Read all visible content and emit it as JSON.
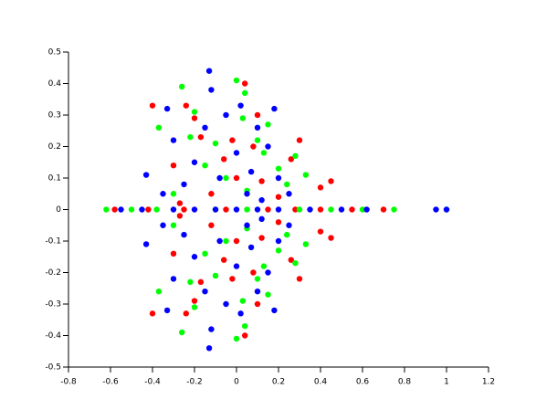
{
  "chart_data": {
    "type": "scatter",
    "xlim": [
      -0.8,
      1.2
    ],
    "ylim": [
      -0.5,
      0.5
    ],
    "xticks": [
      -0.8,
      -0.6,
      -0.4,
      -0.2,
      0,
      0.2,
      0.4,
      0.6,
      0.8,
      1,
      1.2
    ],
    "yticks": [
      -0.5,
      -0.4,
      -0.3,
      -0.2,
      -0.1,
      0,
      0.1,
      0.2,
      0.3,
      0.4,
      0.5
    ],
    "series": [
      {
        "color": "#ff0000",
        "x": [
          -0.58,
          -0.42,
          -0.25,
          -0.05,
          0.15,
          0.28,
          0.4,
          0.55,
          0.7,
          -0.4,
          -0.4,
          0.04,
          0.04,
          -0.24,
          -0.24,
          -0.02,
          -0.02,
          0.1,
          0.1,
          -0.2,
          -0.2,
          0.4,
          0.4,
          0.45,
          0.45,
          0.26,
          0.26,
          -0.17,
          -0.17,
          0,
          0,
          0.12,
          0.12,
          -0.3,
          -0.3,
          0.08,
          0.08,
          -0.12,
          -0.12,
          0.2,
          0.2,
          -0.06,
          -0.06,
          0.3,
          0.3,
          -0.27,
          -0.27
        ],
        "y": [
          0,
          0,
          0,
          0,
          0,
          0,
          0,
          0,
          0,
          0.33,
          -0.33,
          0.4,
          -0.4,
          0.33,
          -0.33,
          0.22,
          -0.22,
          0.3,
          -0.3,
          0.29,
          -0.29,
          0.07,
          -0.07,
          0.09,
          -0.09,
          0.16,
          -0.16,
          0.23,
          -0.23,
          0.1,
          -0.1,
          0.09,
          -0.09,
          0.14,
          -0.14,
          0.2,
          -0.2,
          0.05,
          -0.05,
          0.04,
          -0.04,
          0.16,
          -0.16,
          0.22,
          -0.22,
          0.02,
          -0.02
        ]
      },
      {
        "color": "#00ff00",
        "x": [
          -0.62,
          -0.5,
          -0.38,
          -0.1,
          0.05,
          0.3,
          0.45,
          0.6,
          0.75,
          1,
          0,
          0,
          -0.26,
          -0.26,
          -0.37,
          -0.37,
          0.04,
          0.04,
          -0.2,
          -0.2,
          0.1,
          0.1,
          0.28,
          0.28,
          0.2,
          0.2,
          -0.15,
          -0.15,
          0.05,
          0.05,
          -0.05,
          -0.05,
          0.15,
          0.15,
          -0.3,
          -0.3,
          0.24,
          0.24,
          -0.1,
          -0.1,
          0.03,
          0.03,
          -0.22,
          -0.22,
          0.13,
          0.13,
          0.33,
          0.33
        ],
        "y": [
          0,
          0,
          0,
          0,
          0,
          0,
          0,
          0,
          0,
          0,
          0.41,
          -0.41,
          0.39,
          -0.39,
          0.26,
          -0.26,
          0.37,
          -0.37,
          0.31,
          -0.31,
          0.22,
          -0.22,
          0.17,
          -0.17,
          0.13,
          -0.13,
          0.14,
          -0.14,
          0.06,
          -0.06,
          0.1,
          -0.1,
          0.27,
          -0.27,
          0.05,
          -0.05,
          0.08,
          -0.08,
          0.21,
          -0.21,
          0.29,
          -0.29,
          0.23,
          -0.23,
          0.18,
          -0.18,
          0.11,
          -0.11
        ]
      },
      {
        "color": "#0000ff",
        "x": [
          -0.55,
          -0.45,
          -0.3,
          -0.2,
          -0.1,
          0,
          0.1,
          0.2,
          0.35,
          0.5,
          0.62,
          0.95,
          1,
          -0.13,
          -0.13,
          -0.43,
          -0.43,
          -0.33,
          -0.33,
          -0.3,
          -0.3,
          -0.12,
          -0.12,
          -0.05,
          -0.05,
          0.02,
          0.02,
          0.1,
          0.1,
          0.15,
          0.15,
          0.2,
          0.2,
          -0.2,
          -0.2,
          -0.08,
          -0.08,
          0.05,
          0.05,
          0.12,
          0.12,
          -0.25,
          -0.25,
          0.18,
          0.18,
          0,
          0,
          -0.15,
          -0.15,
          0.07,
          0.07,
          0.25,
          0.25,
          -0.35,
          -0.35
        ],
        "y": [
          0,
          0,
          0,
          0,
          0,
          0,
          0,
          0,
          0,
          0,
          0,
          0,
          0,
          0.44,
          -0.44,
          0.11,
          -0.11,
          0.32,
          -0.32,
          0.22,
          -0.22,
          0.38,
          -0.38,
          0.3,
          -0.3,
          0.33,
          -0.33,
          0.26,
          -0.26,
          0.2,
          -0.2,
          0.1,
          -0.1,
          0.15,
          -0.15,
          0.1,
          -0.1,
          0.05,
          -0.05,
          0.03,
          -0.03,
          0.08,
          -0.08,
          0.32,
          -0.32,
          0.18,
          -0.18,
          0.26,
          -0.26,
          0.12,
          -0.12,
          0.05,
          -0.05,
          0.05,
          -0.05
        ]
      }
    ]
  }
}
